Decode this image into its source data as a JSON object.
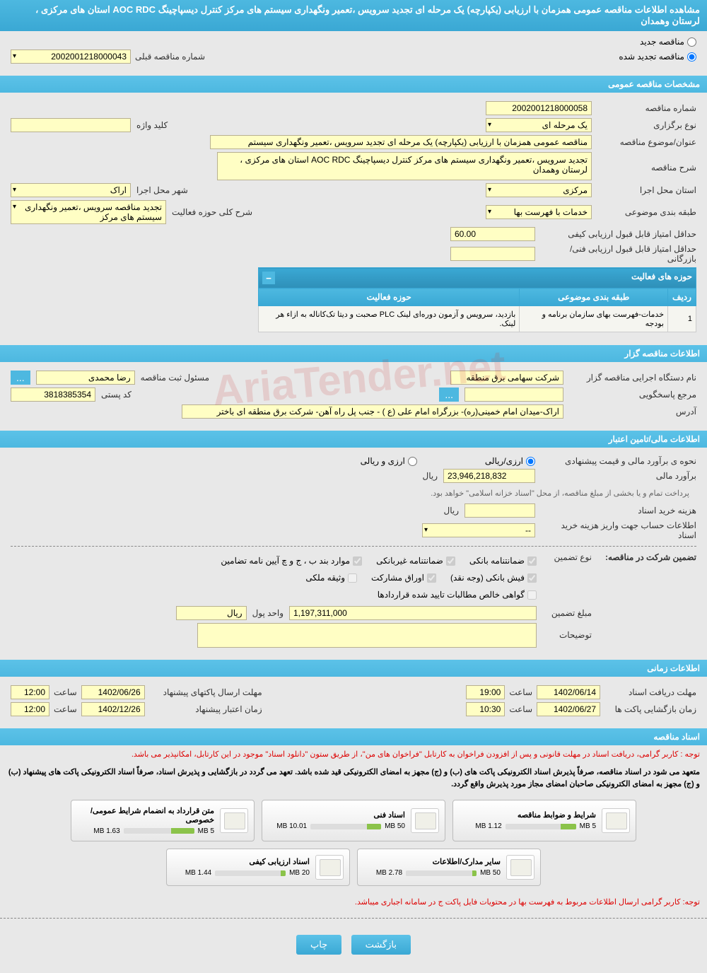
{
  "header": {
    "title": "مشاهده اطلاعات مناقصه عمومی همزمان با ارزیابی (یکپارچه) یک مرحله ای تجدید سرویس ،تعمیر ونگهداری سیستم های مرکز کنترل دیسپاچینگ AOC RDC استان های مرکزی ، لرستان وهمدان"
  },
  "top_options": {
    "new_tender": "مناقصه جدید",
    "renewed_tender": "مناقصه تجدید شده",
    "prev_number_label": "شماره مناقصه قبلی",
    "prev_number_value": "2002001218000043"
  },
  "general": {
    "section_title": "مشخصات مناقصه عمومی",
    "tender_number_label": "شماره مناقصه",
    "tender_number": "2002001218000058",
    "procedure_type_label": "نوع برگزاری",
    "procedure_type": "یک مرحله ای",
    "keyword_label": "کلید واژه",
    "keyword": "",
    "subject_label": "عنوان/موضوع مناقصه",
    "subject": "مناقصه عمومی همزمان با ارزیابی (یکپارچه) یک مرحله ای تجدید سرویس ،تعمیر ونگهداری سیستم",
    "desc_label": "شرح مناقصه",
    "desc": "تجدید سرویس ،تعمیر ونگهداری سیستم های مرکز کنترل دیسپاچینگ AOC RDC استان های مرکزی ، لرستان وهمدان",
    "province_label": "استان محل اجرا",
    "province": "مرکزی",
    "city_label": "شهر محل اجرا",
    "city": "اراک",
    "classification_label": "طبقه بندی موضوعی",
    "classification": "خدمات با فهرست بها",
    "activity_desc_label": "شرح کلی حوزه فعالیت",
    "activity_desc": "تجدید مناقصه سرویس ،تعمیر ونگهداری سیستم های مرکز",
    "min_qual_score_label": "حداقل امتیاز قابل قبول ارزیابی کیفی",
    "min_qual_score": "60.00",
    "min_tech_score_label": "حداقل امتیاز قابل قبول ارزیابی فنی/بازرگانی",
    "min_tech_score": ""
  },
  "activities": {
    "title": "حوزه های فعالیت",
    "col_row": "ردیف",
    "col_classification": "طبقه بندی موضوعی",
    "col_activity": "حوزه فعالیت",
    "rows": [
      {
        "idx": "1",
        "cls": "خدمات-فهرست بهای سازمان برنامه و بودجه",
        "act": "بازدید، سرویس و آزمون دوره‌ای لینک PLC صحبت و دیتا تک‌کاناله به ازاء هر لینک."
      }
    ]
  },
  "owner": {
    "section_title": "اطلاعات مناقصه گزار",
    "org_label": "نام دستگاه اجرایی مناقصه گزار",
    "org": "شرکت سهامی برق منطقه",
    "responsible_label": "مسئول ثبت مناقصه",
    "responsible": "رضا محمدی",
    "contact_label": "مرجع پاسخگویی",
    "postal_label": "کد پستی",
    "postal": "3818385354",
    "address_label": "آدرس",
    "address": "اراک-میدان امام خمینی(ره)- بزرگراه امام علی (ع ) - جنب پل راه آهن- شرکت برق منطقه ای باختر"
  },
  "financial": {
    "section_title": "اطلاعات مالی/تامین اعتبار",
    "estimation_label": "نحوه ی برآورد مالی و قیمت پیشنهادی",
    "opt_rial": "ارزی/ریالی",
    "opt_currency": "ارزی و ریالی",
    "est_label": "برآورد مالی",
    "est_value": "23,946,218,832",
    "rial": "ریال",
    "payment_note": "پرداخت تمام و یا بخشی از مبلغ مناقصه، از محل \"اسناد خزانه اسلامی\" خواهد بود.",
    "doc_cost_label": "هزینه خرید اسناد",
    "account_label": "اطلاعات حساب جهت واریز هزینه خرید اسناد",
    "account_value": "--"
  },
  "guarantee": {
    "participate_label": "تضمین شرکت در مناقصه:",
    "type_label": "نوع تضمین",
    "cb_bank": "ضمانتنامه بانکی",
    "cb_nonbank": "ضمانتنامه غیربانکی",
    "cb_bonds": "موارد بند ب ، ج و چ آیین نامه تضامین",
    "cb_cash": "فیش بانکی (وجه نقد)",
    "cb_securities": "اوراق مشارکت",
    "cb_property": "وثیقه ملکی",
    "cb_receivables": "گواهی خالص مطالبات تایید شده قراردادها",
    "amount_label": "مبلغ تضمین",
    "amount": "1,197,311,000",
    "unit_label": "واحد پول",
    "unit": "ریال",
    "notes_label": "توضیحات"
  },
  "timing": {
    "section_title": "اطلاعات زمانی",
    "doc_deadline_label": "مهلت دریافت اسناد",
    "doc_deadline_date": "1402/06/14",
    "doc_deadline_time": "19:00",
    "packet_deadline_label": "مهلت ارسال پاکتهای پیشنهاد",
    "packet_deadline_date": "1402/06/26",
    "packet_deadline_time": "12:00",
    "opening_label": "زمان بازگشایی پاکت ها",
    "opening_date": "1402/06/27",
    "opening_time": "10:30",
    "validity_label": "زمان اعتبار پیشنهاد",
    "validity_date": "1402/12/26",
    "validity_time": "12:00",
    "time_label": "ساعت"
  },
  "documents": {
    "section_title": "اسناد مناقصه",
    "note1": "توجه : کاربر گرامی، دریافت اسناد در مهلت قانونی و پس از افزودن فراخوان به کارتابل \"فراخوان های من\"، از طریق ستون \"دانلود اسناد\" موجود در این کارتابل، امکانپذیر می باشد.",
    "note2": "متعهد می شود در اسناد مناقصه، صرفاً پذیرش اسناد الکترونیکی پاکت های (ب) و (ج) مجهز به امضای الکترونیکی قید شده باشد. تعهد می گردد در بازگشایی و پذیرش اسناد، صرفاً اسناد الکترونیکی پاکت های پیشنهاد (ب) و (ج) مجهز به امضای الکترونیکی صاحبان امضای مجاز مورد پذیرش واقع گردد.",
    "files": [
      {
        "title": "شرایط و ضوابط مناقصه",
        "size": "1.12 MB",
        "max": "5 MB",
        "pct": 22
      },
      {
        "title": "اسناد فنی",
        "size": "10.01 MB",
        "max": "50 MB",
        "pct": 20
      },
      {
        "title": "متن قرارداد به انضمام شرایط عمومی/خصوصی",
        "size": "1.63 MB",
        "max": "5 MB",
        "pct": 33
      },
      {
        "title": "سایر مدارک/اطلاعات",
        "size": "2.78 MB",
        "max": "50 MB",
        "pct": 6
      },
      {
        "title": "اسناد ارزیابی کیفی",
        "size": "1.44 MB",
        "max": "20 MB",
        "pct": 7
      }
    ],
    "bottom_note": "توجه: کاربر گرامی ارسال اطلاعات مربوط به فهرست بها در محتویات فایل پاکت ج در سامانه اجباری میباشد."
  },
  "footer": {
    "back": "بازگشت",
    "print": "چاپ"
  },
  "colors": {
    "header_bg": "#4db8e0",
    "input_bg": "#fffec4",
    "page_bg": "#e8e8e8"
  }
}
